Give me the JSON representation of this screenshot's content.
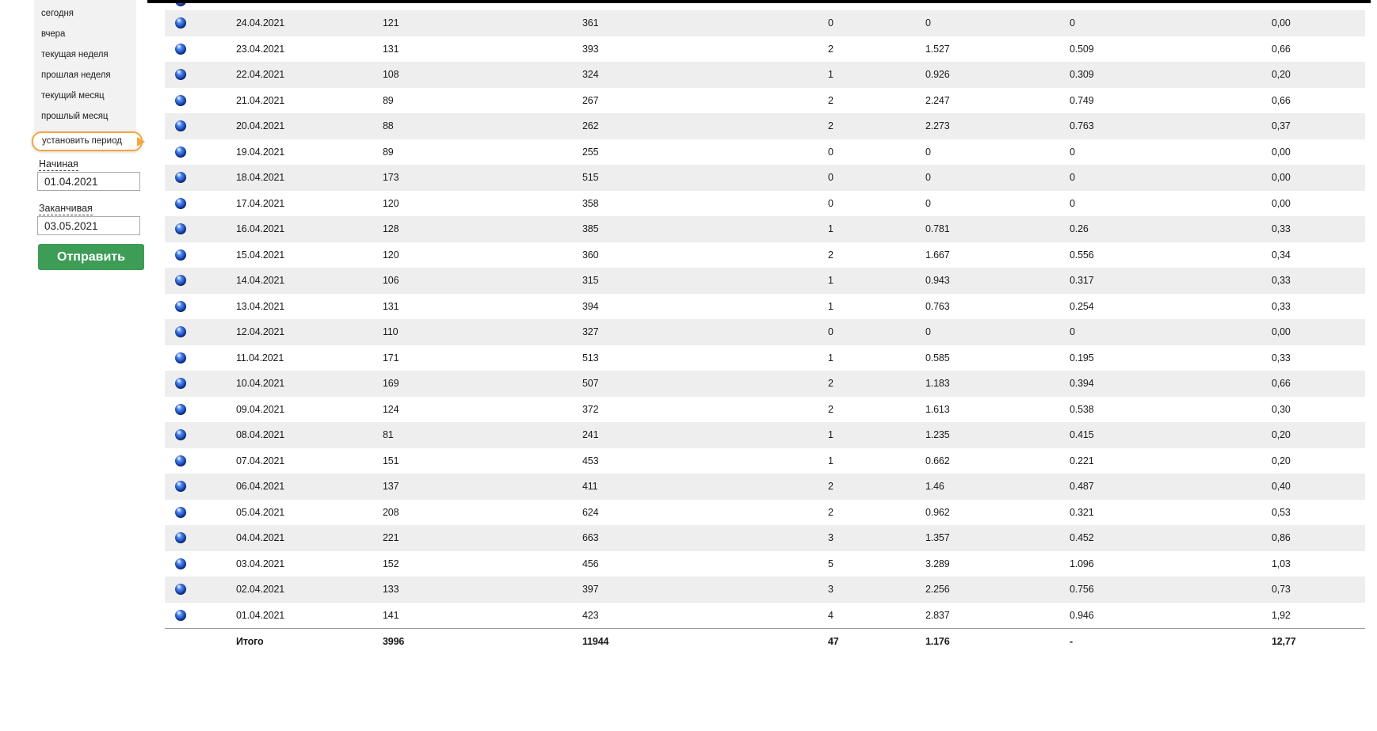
{
  "sidebar": {
    "menu_items": [
      "сегодня",
      "вчера",
      "текущая неделя",
      "прошлая неделя",
      "текущий месяц",
      "прошлый месяц"
    ],
    "set_period_label": "установить период",
    "start_label": "Начиная",
    "start_value": "01.04.2021",
    "end_label": "Заканчивая",
    "end_value": "03.05.2021",
    "submit_label": "Отправить"
  },
  "table": {
    "rows": [
      [
        "24.04.2021",
        "121",
        "361",
        "0",
        "0",
        "0",
        "0,00"
      ],
      [
        "23.04.2021",
        "131",
        "393",
        "2",
        "1.527",
        "0.509",
        "0,66"
      ],
      [
        "22.04.2021",
        "108",
        "324",
        "1",
        "0.926",
        "0.309",
        "0,20"
      ],
      [
        "21.04.2021",
        "89",
        "267",
        "2",
        "2.247",
        "0.749",
        "0,66"
      ],
      [
        "20.04.2021",
        "88",
        "262",
        "2",
        "2.273",
        "0.763",
        "0,37"
      ],
      [
        "19.04.2021",
        "89",
        "255",
        "0",
        "0",
        "0",
        "0,00"
      ],
      [
        "18.04.2021",
        "173",
        "515",
        "0",
        "0",
        "0",
        "0,00"
      ],
      [
        "17.04.2021",
        "120",
        "358",
        "0",
        "0",
        "0",
        "0,00"
      ],
      [
        "16.04.2021",
        "128",
        "385",
        "1",
        "0.781",
        "0.26",
        "0,33"
      ],
      [
        "15.04.2021",
        "120",
        "360",
        "2",
        "1.667",
        "0.556",
        "0,34"
      ],
      [
        "14.04.2021",
        "106",
        "315",
        "1",
        "0.943",
        "0.317",
        "0,33"
      ],
      [
        "13.04.2021",
        "131",
        "394",
        "1",
        "0.763",
        "0.254",
        "0,33"
      ],
      [
        "12.04.2021",
        "110",
        "327",
        "0",
        "0",
        "0",
        "0,00"
      ],
      [
        "11.04.2021",
        "171",
        "513",
        "1",
        "0.585",
        "0.195",
        "0,33"
      ],
      [
        "10.04.2021",
        "169",
        "507",
        "2",
        "1.183",
        "0.394",
        "0,66"
      ],
      [
        "09.04.2021",
        "124",
        "372",
        "2",
        "1.613",
        "0.538",
        "0,30"
      ],
      [
        "08.04.2021",
        "81",
        "241",
        "1",
        "1.235",
        "0.415",
        "0,20"
      ],
      [
        "07.04.2021",
        "151",
        "453",
        "1",
        "0.662",
        "0.221",
        "0,20"
      ],
      [
        "06.04.2021",
        "137",
        "411",
        "2",
        "1.46",
        "0.487",
        "0,40"
      ],
      [
        "05.04.2021",
        "208",
        "624",
        "2",
        "0.962",
        "0.321",
        "0,53"
      ],
      [
        "04.04.2021",
        "221",
        "663",
        "3",
        "1.357",
        "0.452",
        "0,86"
      ],
      [
        "03.04.2021",
        "152",
        "456",
        "5",
        "3.289",
        "1.096",
        "1,03"
      ],
      [
        "02.04.2021",
        "133",
        "397",
        "3",
        "2.256",
        "0.756",
        "0,73"
      ],
      [
        "01.04.2021",
        "141",
        "423",
        "4",
        "2.837",
        "0.946",
        "1,92"
      ]
    ],
    "total": [
      "Итого",
      "3996",
      "11944",
      "47",
      "1.176",
      "-",
      "12,77"
    ]
  },
  "colors": {
    "accent_orange": "#f4a640",
    "button_green": "#3d9c56",
    "row_stripe": "#eeeeee",
    "top_bar": "#000000",
    "globe_blue": "#1c56cc"
  }
}
